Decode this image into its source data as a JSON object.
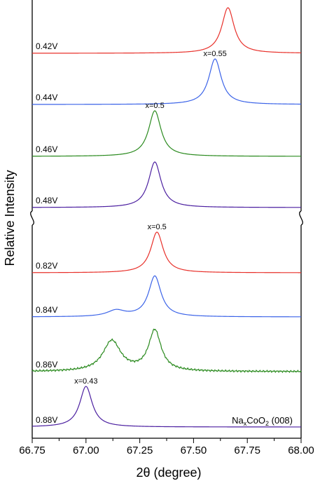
{
  "chart_data": {
    "type": "line",
    "xlabel": "2θ (degree)",
    "ylabel": "Relative Intensity",
    "xlim": [
      66.75,
      68.0
    ],
    "x_ticks": [
      "66.75",
      "67.00",
      "67.25",
      "67.50",
      "67.75",
      "68.00"
    ],
    "x_tick_values": [
      66.75,
      67.0,
      67.25,
      67.5,
      67.75,
      68.0
    ],
    "axis_break": true,
    "sample_label": {
      "prefix": "Na",
      "sub1": "x",
      "mid": "CoO",
      "sub2": "2",
      "suffix": " (008)"
    },
    "series": [
      {
        "name": "0.42V",
        "color": "#e8302a",
        "peaks": [
          {
            "center": 67.66,
            "height": 1.0,
            "width": 0.035
          }
        ]
      },
      {
        "name": "0.44V",
        "color": "#3b63e8",
        "peaks": [
          {
            "center": 67.6,
            "height": 1.0,
            "width": 0.035
          }
        ]
      },
      {
        "name": "0.46V",
        "color": "#2a8a1e",
        "peaks": [
          {
            "center": 67.32,
            "height": 1.0,
            "width": 0.035
          }
        ]
      },
      {
        "name": "0.48V",
        "color": "#4b1fa0",
        "peaks": [
          {
            "center": 67.32,
            "height": 1.0,
            "width": 0.035
          }
        ]
      },
      {
        "name": "0.82V",
        "color": "#e8302a",
        "peaks": [
          {
            "center": 67.33,
            "height": 1.0,
            "width": 0.035
          }
        ]
      },
      {
        "name": "0.84V",
        "color": "#3b63e8",
        "peaks": [
          {
            "center": 67.32,
            "height": 1.0,
            "width": 0.035
          },
          {
            "center": 67.14,
            "height": 0.15,
            "width": 0.05
          }
        ]
      },
      {
        "name": "0.86V",
        "color": "#2a8a1e",
        "peaks": [
          {
            "center": 67.32,
            "height": 1.0,
            "width": 0.035
          },
          {
            "center": 67.12,
            "height": 0.75,
            "width": 0.05
          }
        ]
      },
      {
        "name": "0.88V",
        "color": "#4b1fa0",
        "peaks": [
          {
            "center": 67.0,
            "height": 1.0,
            "width": 0.035
          }
        ]
      }
    ],
    "annotations": [
      {
        "text": "x=0.55",
        "series": "0.44V",
        "x": 67.6
      },
      {
        "text": "x=0.5",
        "series": "0.46V",
        "x": 67.32
      },
      {
        "text": "x=0.5",
        "series": "0.82V",
        "x": 67.33
      },
      {
        "text": "x=0.43",
        "series": "0.88V",
        "x": 67.0
      }
    ]
  }
}
